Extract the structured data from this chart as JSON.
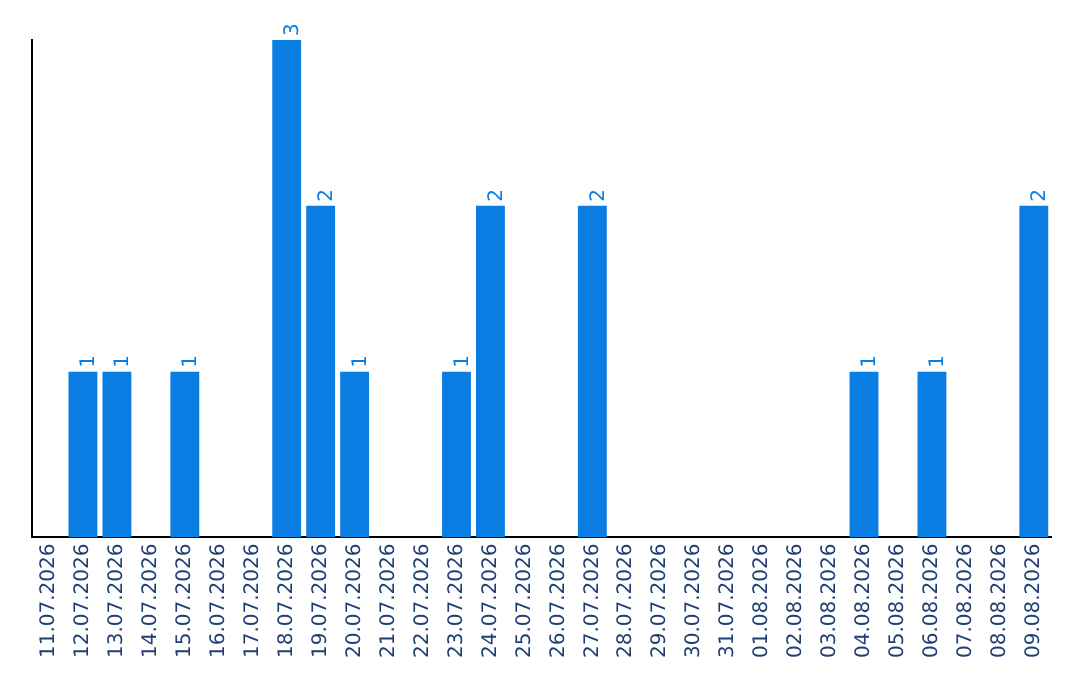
{
  "chart_data": {
    "type": "bar",
    "categories": [
      "11.07.2026",
      "12.07.2026",
      "13.07.2026",
      "14.07.2026",
      "15.07.2026",
      "16.07.2026",
      "17.07.2026",
      "18.07.2026",
      "19.07.2026",
      "20.07.2026",
      "21.07.2026",
      "22.07.2026",
      "23.07.2026",
      "24.07.2026",
      "25.07.2026",
      "26.07.2026",
      "27.07.2026",
      "28.07.2026",
      "29.07.2026",
      "30.07.2026",
      "31.07.2026",
      "01.08.2026",
      "02.08.2026",
      "03.08.2026",
      "04.08.2026",
      "05.08.2026",
      "06.08.2026",
      "07.08.2026",
      "08.08.2026",
      "09.08.2026"
    ],
    "values": [
      0,
      1,
      1,
      0,
      1,
      0,
      0,
      3,
      2,
      1,
      0,
      0,
      1,
      2,
      0,
      0,
      2,
      0,
      0,
      0,
      0,
      0,
      0,
      0,
      1,
      0,
      1,
      0,
      0,
      2
    ],
    "value_labels": [
      null,
      "1",
      "1",
      null,
      "1",
      null,
      null,
      "3",
      "2",
      "1",
      null,
      null,
      "1",
      "2",
      null,
      null,
      "2",
      null,
      null,
      null,
      null,
      null,
      null,
      null,
      "1",
      null,
      "1",
      null,
      null,
      "2"
    ],
    "color": "#0a7de3",
    "grid": false,
    "legend": false,
    "tick_labels": "x"
  }
}
